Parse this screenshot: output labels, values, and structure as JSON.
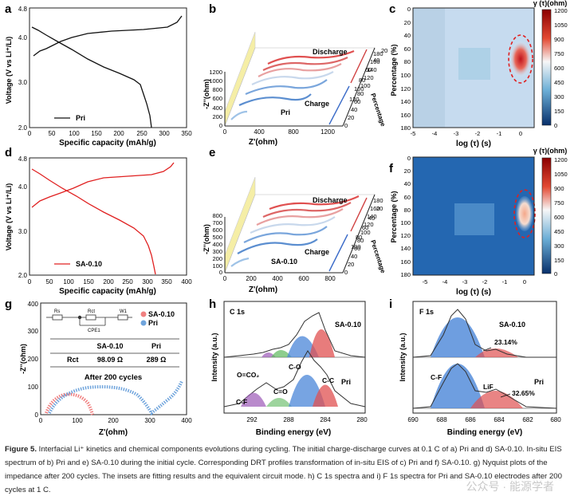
{
  "panels": {
    "a": {
      "label": "a",
      "xlabel": "Specific capacity (mAh/g)",
      "ylabel": "Voltage (V vs Li⁺/Li)",
      "xticks": [
        "0",
        "50",
        "100",
        "150",
        "200",
        "250",
        "300",
        "350"
      ],
      "yticks": [
        "2.0",
        "3.0",
        "4.0",
        "4.8"
      ],
      "legend": "Pri"
    },
    "b": {
      "label": "b",
      "xlabel": "Z'(ohm)",
      "ylabel": "-Z''(ohm)",
      "xticks": [
        "0",
        "400",
        "800",
        "1200"
      ],
      "yticks": [
        "0",
        "200",
        "400",
        "600",
        "800",
        "1000",
        "1200"
      ],
      "ptick": [
        "0",
        "20",
        "40",
        "60",
        "80",
        "100",
        "120",
        "140",
        "160",
        "180"
      ],
      "ptick2": [
        "20",
        "40",
        "60",
        "80",
        "100",
        "120"
      ],
      "plabel": "Percentage",
      "discharge": "Discharge",
      "charge": "Charge",
      "sample": "Pri"
    },
    "c": {
      "label": "c",
      "title": "γ (τ)(ohm)",
      "xlabel": "log (τ) (s)",
      "ylabel": "Percentage (%)",
      "xticks": [
        "-5",
        "-4",
        "-3",
        "-2",
        "-1",
        "0"
      ],
      "yticks": [
        "0",
        "20",
        "40",
        "60",
        "80",
        "100",
        "120",
        "140",
        "160",
        "180"
      ],
      "cbticks": [
        "1200",
        "1050",
        "900",
        "750",
        "600",
        "450",
        "300",
        "150",
        "0"
      ]
    },
    "d": {
      "label": "d",
      "xlabel": "Specific capacity (mAh/g)",
      "ylabel": "Voltage (V vs Li⁺/Li)",
      "xticks": [
        "0",
        "50",
        "100",
        "150",
        "200",
        "250",
        "300",
        "350",
        "400"
      ],
      "yticks": [
        "2.0",
        "3.0",
        "4.0",
        "4.8"
      ],
      "legend": "SA-0.10"
    },
    "e": {
      "label": "e",
      "xlabel": "Z'(ohm)",
      "ylabel": "-Z''(ohm)",
      "xticks": [
        "0",
        "200",
        "400",
        "600",
        "800"
      ],
      "yticks": [
        "0",
        "100",
        "200",
        "300",
        "400",
        "500",
        "600",
        "700",
        "800"
      ],
      "ptick": [
        "0",
        "20",
        "40",
        "60",
        "80",
        "100",
        "120",
        "140",
        "160",
        "180"
      ],
      "ptick2": [
        "20",
        "40",
        "60",
        "80",
        "100"
      ],
      "plabel": "Percentage",
      "discharge": "Discharge",
      "charge": "Charge",
      "sample": "SA-0.10"
    },
    "f": {
      "label": "f",
      "title": "γ (τ)(ohm)",
      "xlabel": "log (τ) (s)",
      "ylabel": "Percentage (%)",
      "xticks": [
        "-5",
        "-4",
        "-3",
        "-2",
        "-1",
        "0"
      ],
      "yticks": [
        "0",
        "20",
        "40",
        "60",
        "80",
        "100",
        "120",
        "140",
        "160",
        "180"
      ],
      "cbticks": [
        "1200",
        "1050",
        "900",
        "750",
        "600",
        "450",
        "300",
        "150",
        "0"
      ]
    },
    "g": {
      "label": "g",
      "xlabel": "Z'(ohm)",
      "ylabel": "-Z''(ohm)",
      "xticks": [
        "0",
        "100",
        "200",
        "300",
        "400"
      ],
      "yticks": [
        "0",
        "100",
        "200",
        "300",
        "400"
      ],
      "legend": [
        "SA-0.10",
        "Pri"
      ],
      "circuit": [
        "Rs",
        "Rct",
        "W1",
        "CPE1"
      ],
      "table": {
        "headers": [
          "",
          "SA-0.10",
          "Pri"
        ],
        "row": [
          "Rct",
          "98.09 Ω",
          "289 Ω"
        ]
      },
      "note": "After 200 cycles"
    },
    "h": {
      "label": "h",
      "xlabel": "Binding energy (eV)",
      "ylabel": "Intensity (a.u.)",
      "xticks": [
        "292",
        "288",
        "284",
        "280"
      ],
      "title": "C 1s",
      "top": "SA-0.10",
      "bottom": "Pri",
      "peaks": [
        "O=CO₂",
        "C=O",
        "C-O",
        "C-C",
        "C-F"
      ]
    },
    "i": {
      "label": "i",
      "xlabel": "Binding energy (eV)",
      "ylabel": "Intensity (a.u.)",
      "xticks": [
        "690",
        "688",
        "686",
        "684",
        "682",
        "680"
      ],
      "title": "F 1s",
      "top": "SA-0.10",
      "bottom": "Pri",
      "toppct": "23.14%",
      "botpct": "32.65%",
      "peaks": [
        "C-F",
        "LiF"
      ]
    }
  },
  "caption": {
    "bold": "Figure 5.",
    "text": " Interfacial Li⁺ kinetics and chemical components evolutions during cycling. The initial charge-discharge curves at 0.1 C of a) Pri and d) SA-0.10. In-situ EIS spectrum of b) Pri and e) SA-0.10 during the initial cycle. Corresponding DRT profiles transformation of in-situ EIS of c) Pri and f) SA-0.10. g) Nyquist plots of the impedance after 200 cycles. The insets are fitting results and the equivalent circuit mode. h) C 1s spectra and i) F 1s spectra for Pri and SA-0.10 electrodes after 200 cycles at 1 C."
  },
  "watermark": "公众号 · 能源学者",
  "colors": {
    "pri": "#111111",
    "sa": "#e02020",
    "blue": "#4a86d8",
    "red": "#e05050",
    "green": "#5cb85c",
    "purple": "#9b59b6"
  }
}
